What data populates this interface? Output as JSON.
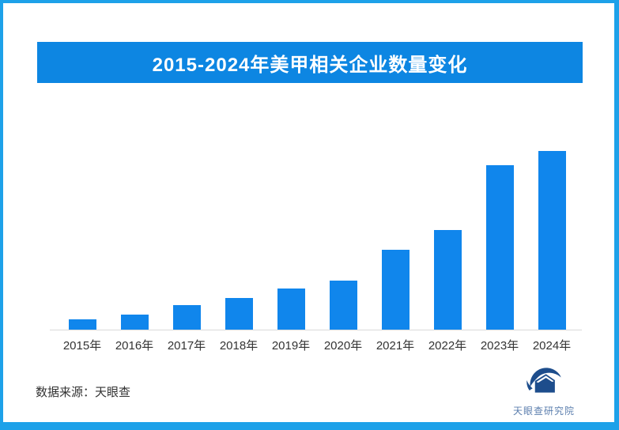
{
  "frame": {
    "border_color": "#1da1e9",
    "background_color": "#ffffff"
  },
  "title": {
    "text": "2015-2024年美甲相关企业数量变化",
    "banner_color": "#0d86e2",
    "text_color": "#ffffff"
  },
  "chart_data": {
    "type": "bar",
    "title": "2015-2024年美甲相关企业数量变化",
    "categories": [
      "2015年",
      "2016年",
      "2017年",
      "2018年",
      "2019年",
      "2020年",
      "2021年",
      "2022年",
      "2023年",
      "2024年"
    ],
    "values": [
      5.8,
      8.5,
      13.6,
      17.9,
      22.8,
      27.5,
      44.7,
      55.9,
      92.2,
      100
    ],
    "values_unit": "relative bar height, % of 2024 bar (no numeric axis or data labels shown)",
    "xlabel": "",
    "ylabel": "",
    "grid": false,
    "legend": false,
    "bar_color": "#1086ec",
    "axis_line_color": "#d9d9d9",
    "tick_label_color": "#333333"
  },
  "footer": {
    "source_text": "数据来源：天眼查"
  },
  "logo": {
    "text": "天眼查研究院",
    "mark_color": "#1d4d8c",
    "text_color": "#5c7fae"
  }
}
